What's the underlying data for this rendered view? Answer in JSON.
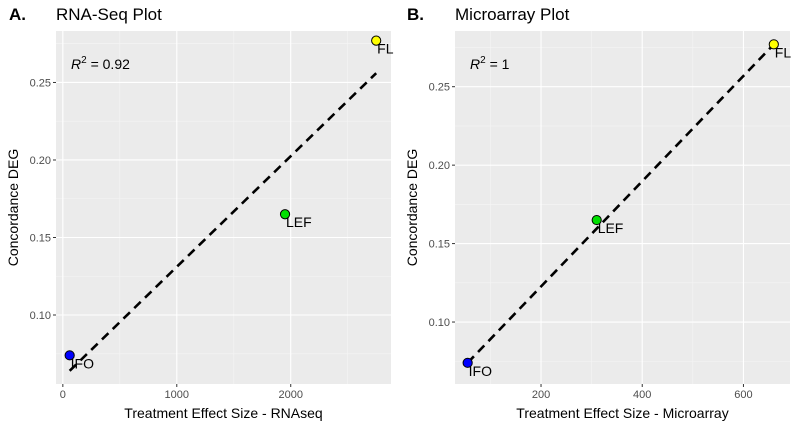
{
  "chart_data": [
    {
      "type": "scatter",
      "panel_label": "A.",
      "title": "RNA-Seq Plot",
      "xlabel": "Treatment Effect Size - RNAseq",
      "ylabel": "Concordance DEG",
      "xlim": [
        -60,
        2880
      ],
      "ylim": [
        0.0555,
        0.2832
      ],
      "xticks": [
        0,
        1000,
        2000
      ],
      "yticks": [
        0.1,
        0.15,
        0.2,
        0.25
      ],
      "xtick_labels": [
        "0",
        "1000",
        "2000"
      ],
      "ytick_labels": [
        "0.10",
        "0.15",
        "0.20",
        "0.25"
      ],
      "grid": true,
      "annotation": {
        "r2_symbol": "R",
        "r2_power": "2",
        "r2_text": " = 0.92"
      },
      "points": [
        {
          "label": "IFO",
          "x": 60,
          "y": 0.074,
          "color": "#0000ff"
        },
        {
          "label": "LEF",
          "x": 1950,
          "y": 0.165,
          "color": "#00e000"
        },
        {
          "label": "FL",
          "x": 2750,
          "y": 0.277,
          "color": "#ffff00"
        }
      ],
      "trend_line": {
        "x": [
          60,
          2750
        ],
        "y": [
          0.064,
          0.256
        ],
        "style": "dashed",
        "color": "#000000"
      }
    },
    {
      "type": "scatter",
      "panel_label": "B.",
      "title": "Microarray Plot",
      "xlabel": "Treatment Effect Size - Microarray",
      "ylabel": "Concordance DEG",
      "xlim": [
        30,
        692
      ],
      "ylim": [
        0.0605,
        0.2855
      ],
      "xticks": [
        200,
        400,
        600
      ],
      "yticks": [
        0.1,
        0.15,
        0.2,
        0.25
      ],
      "xtick_labels": [
        "200",
        "400",
        "600"
      ],
      "ytick_labels": [
        "0.10",
        "0.15",
        "0.20",
        "0.25"
      ],
      "grid": true,
      "annotation": {
        "r2_symbol": "R",
        "r2_power": "2",
        "r2_text": " = 1"
      },
      "points": [
        {
          "label": "IFO",
          "x": 55,
          "y": 0.074,
          "color": "#0000ff"
        },
        {
          "label": "LEF",
          "x": 310,
          "y": 0.165,
          "color": "#00e000"
        },
        {
          "label": "FL",
          "x": 660,
          "y": 0.277,
          "color": "#ffff00"
        }
      ],
      "trend_line": {
        "x": [
          55,
          660
        ],
        "y": [
          0.074,
          0.277
        ],
        "style": "dashed",
        "color": "#000000"
      }
    }
  ]
}
